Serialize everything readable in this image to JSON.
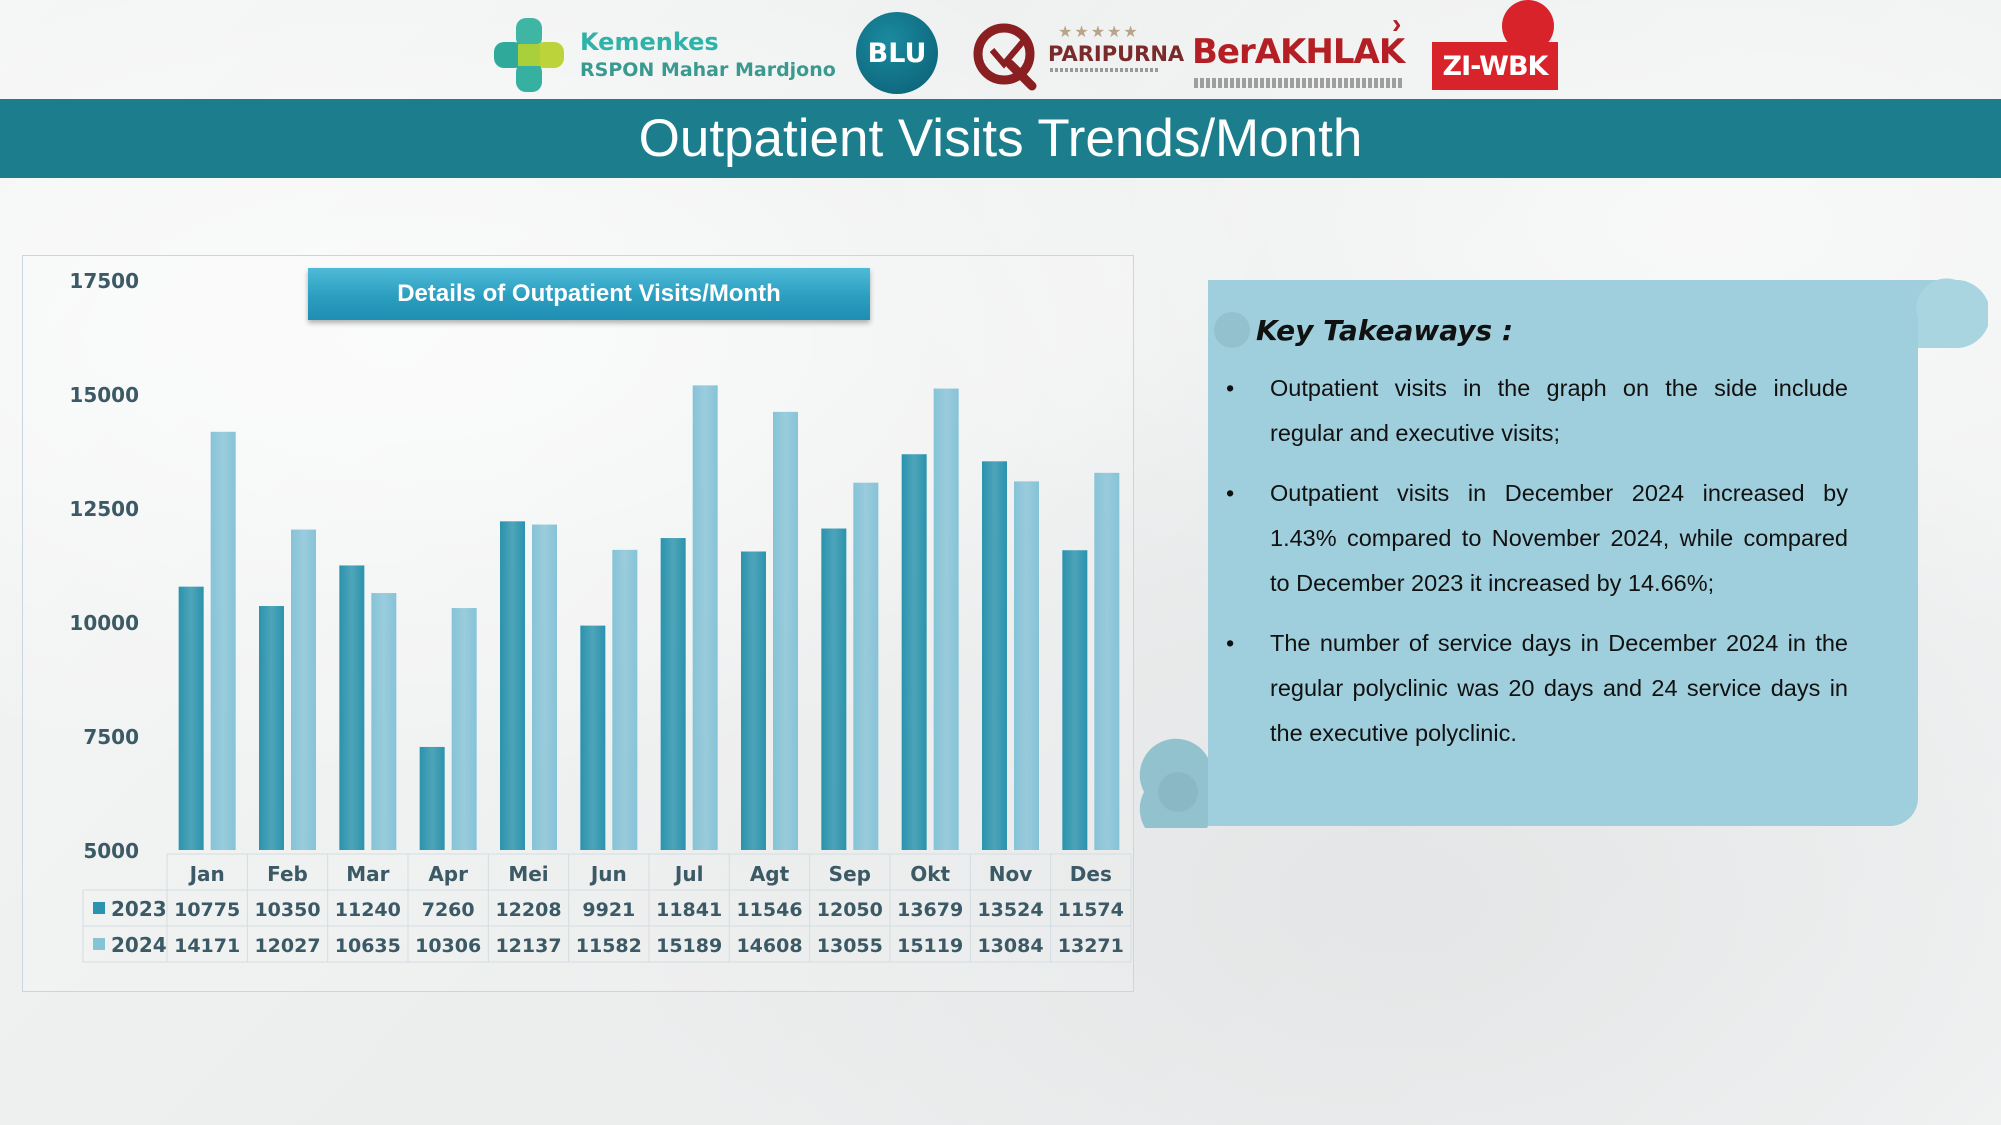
{
  "header": {
    "logos": {
      "kemenkes_line1": "Kemenkes",
      "kemenkes_line2": "RSPON Mahar Mardjono",
      "blu": "BLU",
      "paripurna": "PARIPURNA",
      "berakhlak": "BerAKHLAK",
      "ziwbk": "ZI-WBK"
    },
    "title": "Outpatient Visits Trends/Month"
  },
  "chart_title": "Details of Outpatient  Visits/Month",
  "chart_data": {
    "type": "bar",
    "title": "Details of Outpatient  Visits/Month",
    "categories": [
      "Jan",
      "Feb",
      "Mar",
      "Apr",
      "Mei",
      "Jun",
      "Jul",
      "Agt",
      "Sep",
      "Okt",
      "Nov",
      "Des"
    ],
    "series": [
      {
        "name": "2023",
        "color": "#2a93ad",
        "values": [
          10775,
          10350,
          11240,
          7260,
          12208,
          9921,
          11841,
          11546,
          12050,
          13679,
          13524,
          11574
        ]
      },
      {
        "name": "2024",
        "color": "#86c3d7",
        "values": [
          14171,
          12027,
          10635,
          10306,
          12137,
          11582,
          15189,
          14608,
          13055,
          15119,
          13084,
          13271
        ]
      }
    ],
    "y_ticks": [
      5000,
      7500,
      10000,
      12500,
      15000,
      17500
    ],
    "ylim": [
      5000,
      17500
    ],
    "grid": false,
    "legend": "data-table-below"
  },
  "takeaways": {
    "heading": "Key Takeaways :",
    "bullet": "•",
    "items": [
      "Outpatient visits in the graph on the side include regular and executive visits;",
      "Outpatient visits in December 2024 increased by 1.43% compared to November 2024, while compared to December  2023 it increased by 14.66%;",
      "The number of service days in December 2024 in the regular polyclinic was 20 days and 24 service days in the executive polyclinic."
    ]
  }
}
